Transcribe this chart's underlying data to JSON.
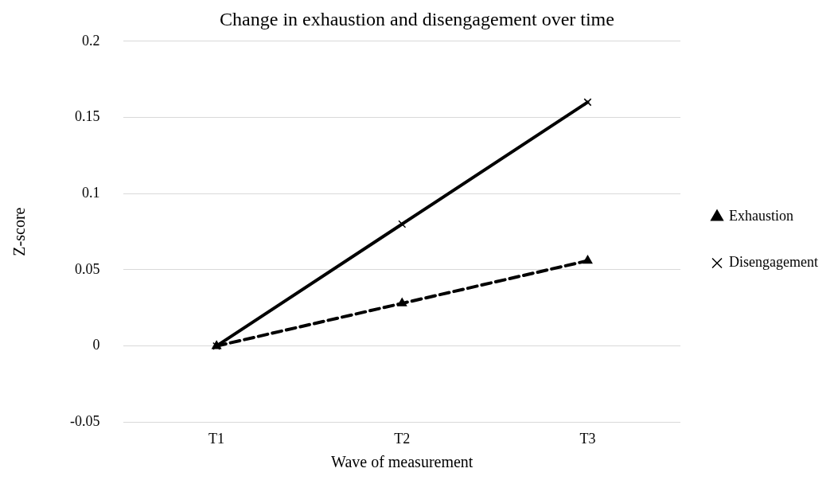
{
  "chart_data": {
    "type": "line",
    "title": "Change in exhaustion and disengagement over time",
    "xlabel": "Wave of measurement",
    "ylabel": "Z-score",
    "categories": [
      "T1",
      "T2",
      "T3"
    ],
    "series": [
      {
        "name": "Exhaustion",
        "color": "#000000",
        "values": [
          0,
          0.028,
          0.056
        ],
        "marker": "triangle",
        "line_style": "dashed"
      },
      {
        "name": "Disengagement",
        "color": "#000000",
        "values": [
          0,
          0.08,
          0.16
        ],
        "marker": "cross",
        "line_style": "solid"
      }
    ],
    "ylim": [
      -0.05,
      0.2
    ],
    "yticks": [
      -0.05,
      0,
      0.05,
      0.1,
      0.15,
      0.2
    ],
    "grid": "y",
    "legend": "right"
  }
}
